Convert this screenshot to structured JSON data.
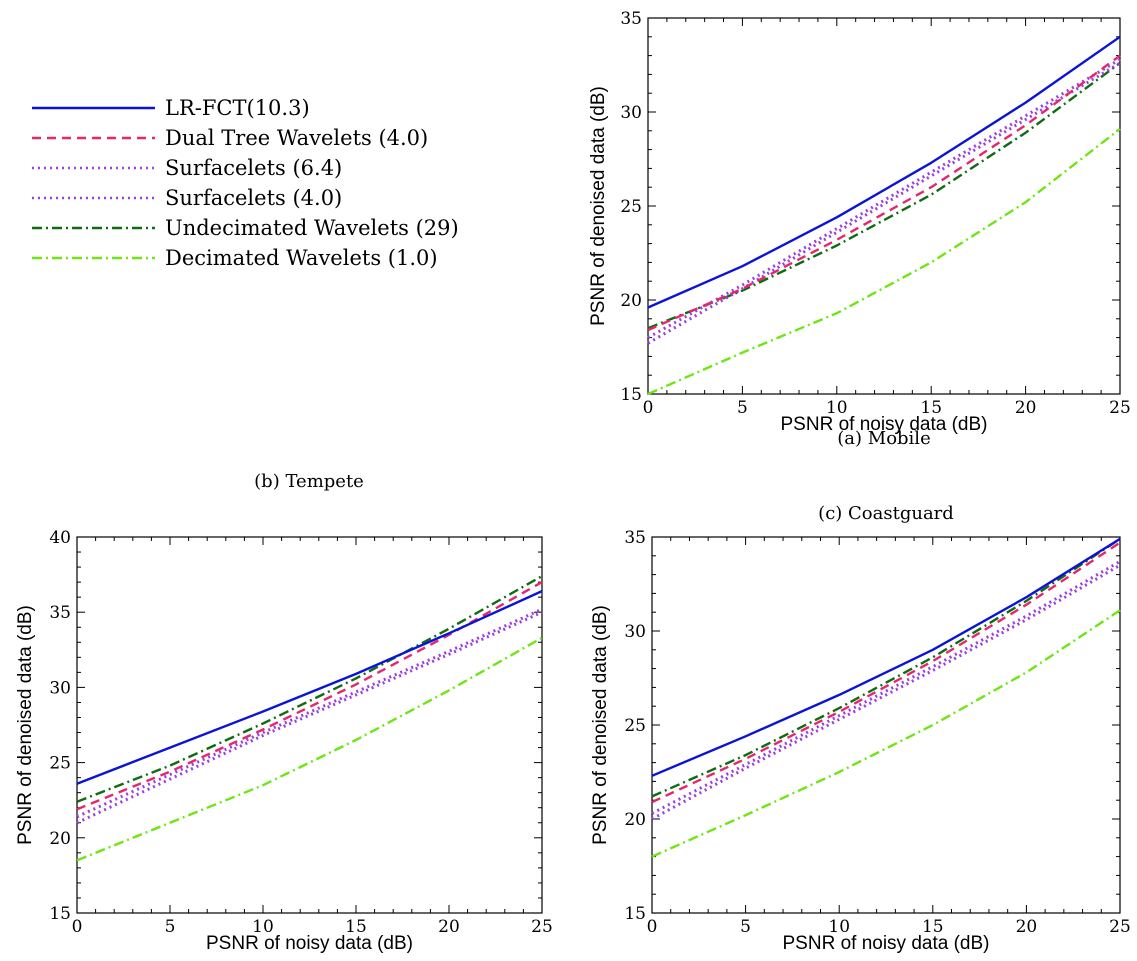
{
  "legend": {
    "entries": [
      {
        "label": "LR-FCT(10.3)",
        "color": "#0a14d8",
        "dash": "solid"
      },
      {
        "label": "Dual Tree Wavelets (4.0)",
        "color": "#e6266e",
        "dash": "dashed"
      },
      {
        "label": "Surfacelets (6.4)",
        "color": "#9b3fe0",
        "dash": "dotted"
      },
      {
        "label": "Surfacelets (4.0)",
        "color": "#9b3fe0",
        "dash": "dotted"
      },
      {
        "label": "Undecimated Wavelets (29)",
        "color": "#106c10",
        "dash": "dashdot"
      },
      {
        "label": "Decimated Wavelets (1.0)",
        "color": "#6ee614",
        "dash": "dashdot"
      }
    ]
  },
  "chart_data": [
    {
      "type": "line",
      "caption": "(a) Mobile",
      "xlabel": "PSNR of noisy data (dB)",
      "ylabel": "PSNR of denoised data (dB)",
      "xlim": [
        0,
        25
      ],
      "ylim": [
        15,
        35
      ],
      "xticks": [
        0,
        5,
        10,
        15,
        20,
        25
      ],
      "yticks": [
        15,
        20,
        25,
        30,
        35
      ],
      "x": [
        0,
        5,
        10,
        15,
        20,
        25
      ],
      "series": [
        {
          "name": "LR-FCT(10.3)",
          "values": [
            19.6,
            21.8,
            24.4,
            27.3,
            30.5,
            34.0
          ]
        },
        {
          "name": "Dual Tree Wavelets (4.0)",
          "values": [
            18.4,
            20.6,
            23.2,
            26.0,
            29.3,
            33.0
          ]
        },
        {
          "name": "Surfacelets (6.4)",
          "values": [
            18.0,
            20.8,
            23.8,
            26.8,
            29.8,
            32.8
          ]
        },
        {
          "name": "Surfacelets (4.0)",
          "values": [
            17.7,
            20.6,
            23.6,
            26.6,
            29.6,
            32.6
          ]
        },
        {
          "name": "Undecimated Wavelets (29)",
          "values": [
            18.5,
            20.5,
            22.9,
            25.6,
            28.9,
            32.6
          ]
        },
        {
          "name": "Decimated Wavelets (1.0)",
          "values": [
            15.0,
            17.2,
            19.3,
            22.0,
            25.2,
            29.1
          ]
        }
      ]
    },
    {
      "type": "line",
      "caption": "(b) Tempete",
      "xlabel": "PSNR of noisy data (dB)",
      "ylabel": "PSNR of denoised data (dB)",
      "xlim": [
        0,
        25
      ],
      "ylim": [
        15,
        40
      ],
      "xticks": [
        0,
        5,
        10,
        15,
        20,
        25
      ],
      "yticks": [
        15,
        20,
        25,
        30,
        35,
        40
      ],
      "x": [
        0,
        5,
        10,
        15,
        20,
        25
      ],
      "series": [
        {
          "name": "LR-FCT(10.3)",
          "values": [
            23.6,
            26.0,
            28.4,
            30.9,
            33.6,
            36.4
          ]
        },
        {
          "name": "Dual Tree Wavelets (4.0)",
          "values": [
            21.9,
            24.4,
            27.2,
            30.2,
            33.5,
            37.0
          ]
        },
        {
          "name": "Surfacelets (6.4)",
          "values": [
            21.4,
            24.2,
            27.0,
            29.7,
            32.4,
            35.2
          ]
        },
        {
          "name": "Surfacelets (4.0)",
          "values": [
            21.0,
            23.9,
            26.8,
            29.5,
            32.2,
            35.0
          ]
        },
        {
          "name": "Undecimated Wavelets (29)",
          "values": [
            22.4,
            24.8,
            27.6,
            30.6,
            33.9,
            37.4
          ]
        },
        {
          "name": "Decimated Wavelets (1.0)",
          "values": [
            18.5,
            21.0,
            23.5,
            26.5,
            29.8,
            33.3
          ]
        }
      ]
    },
    {
      "type": "line",
      "caption": "(c) Coastguard",
      "xlabel": "PSNR of noisy data (dB)",
      "ylabel": "PSNR of denoised data (dB)",
      "xlim": [
        0,
        25
      ],
      "ylim": [
        15,
        35
      ],
      "xticks": [
        0,
        5,
        10,
        15,
        20,
        25
      ],
      "yticks": [
        15,
        20,
        25,
        30,
        35
      ],
      "x": [
        0,
        5,
        10,
        15,
        20,
        25
      ],
      "series": [
        {
          "name": "LR-FCT(10.3)",
          "values": [
            22.3,
            24.4,
            26.6,
            29.0,
            31.8,
            34.9
          ]
        },
        {
          "name": "Dual Tree Wavelets (4.0)",
          "values": [
            20.9,
            23.2,
            25.7,
            28.4,
            31.4,
            34.7
          ]
        },
        {
          "name": "Surfacelets (6.4)",
          "values": [
            20.3,
            22.9,
            25.5,
            28.1,
            30.8,
            33.7
          ]
        },
        {
          "name": "Surfacelets (4.0)",
          "values": [
            20.0,
            22.7,
            25.3,
            27.9,
            30.6,
            33.5
          ]
        },
        {
          "name": "Undecimated Wavelets (29)",
          "values": [
            21.2,
            23.4,
            25.9,
            28.6,
            31.6,
            34.9
          ]
        },
        {
          "name": "Decimated Wavelets (1.0)",
          "values": [
            18.0,
            20.2,
            22.5,
            25.0,
            27.8,
            31.1
          ]
        }
      ]
    }
  ]
}
